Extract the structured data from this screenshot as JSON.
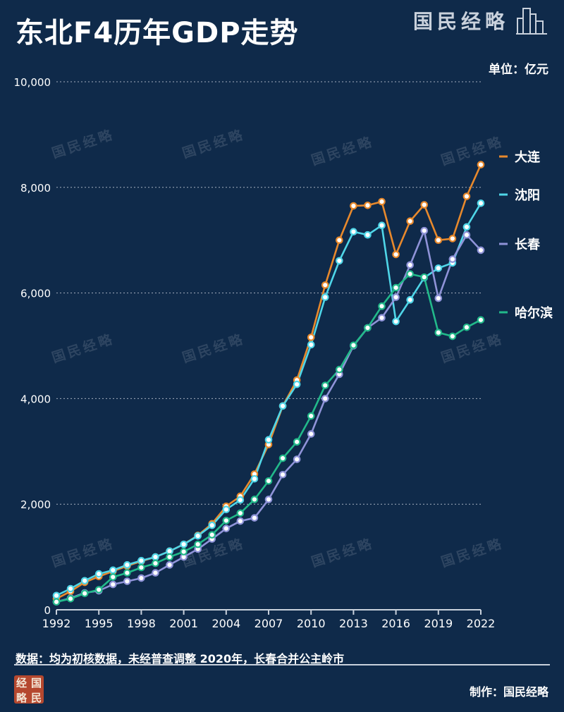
{
  "header": {
    "title": "东北F4历年GDP走势",
    "brand": "国民经略",
    "unit": "单位：亿元"
  },
  "footer": {
    "note": "数据：均为初核数据，未经普查调整   2020年，长春合并公主岭市",
    "credit": "制作：国民经略",
    "seal_chars": [
      "经",
      "国",
      "略",
      "民"
    ]
  },
  "watermark": "国民经略",
  "colors": {
    "background": "#0f2a4a",
    "grid": "#c9d1dc",
    "dalian": "#e8892c",
    "shenyang": "#4fd6e8",
    "changchun": "#8f93d8",
    "haerbin": "#22b98a"
  },
  "chart_data": {
    "type": "line",
    "title": "东北F4历年GDP走势",
    "xlabel": "",
    "ylabel": "",
    "unit": "亿元",
    "xlim": [
      1992,
      2022
    ],
    "ylim": [
      0,
      10000
    ],
    "x_ticks": [
      1992,
      1995,
      1998,
      2001,
      2004,
      2007,
      2010,
      2013,
      2016,
      2019,
      2022
    ],
    "y_ticks": [
      0,
      2000,
      4000,
      6000,
      8000,
      10000
    ],
    "y_tick_labels": [
      "0",
      "2,000",
      "4,000",
      "6,000",
      "8,000",
      "10,000"
    ],
    "grid": true,
    "legend_position": "right",
    "x": [
      1992,
      1993,
      1994,
      1995,
      1996,
      1997,
      1998,
      1999,
      2000,
      2001,
      2002,
      2003,
      2004,
      2005,
      2006,
      2007,
      2008,
      2009,
      2010,
      2011,
      2012,
      2013,
      2014,
      2015,
      2016,
      2017,
      2018,
      2019,
      2020,
      2021,
      2022
    ],
    "series": [
      {
        "name": "大连",
        "color": "#e8892c",
        "values": [
          210,
          350,
          520,
          630,
          730,
          830,
          920,
          1000,
          1110,
          1240,
          1410,
          1630,
          1960,
          2150,
          2570,
          3130,
          3860,
          4350,
          5160,
          6150,
          7000,
          7650,
          7660,
          7730,
          6730,
          7360,
          7670,
          7000,
          7030,
          7830,
          8430
        ]
      },
      {
        "name": "沈阳",
        "color": "#4fd6e8",
        "values": [
          270,
          400,
          550,
          680,
          750,
          850,
          930,
          1000,
          1110,
          1240,
          1400,
          1600,
          1900,
          2080,
          2480,
          3220,
          3860,
          4270,
          5020,
          5920,
          6610,
          7160,
          7100,
          7280,
          5460,
          5870,
          6290,
          6470,
          6570,
          7250,
          7700
        ]
      },
      {
        "name": "长春",
        "color": "#8f93d8",
        "values": [
          150,
          220,
          320,
          360,
          480,
          540,
          600,
          700,
          850,
          1000,
          1150,
          1340,
          1540,
          1680,
          1740,
          2090,
          2560,
          2850,
          3330,
          4000,
          4460,
          5000,
          5340,
          5530,
          5920,
          6530,
          7180,
          5900,
          6640,
          7100,
          6810
        ]
      },
      {
        "name": "哈尔滨",
        "color": "#22b98a",
        "values": [
          150,
          210,
          310,
          380,
          620,
          700,
          800,
          880,
          1000,
          1100,
          1240,
          1420,
          1690,
          1830,
          2090,
          2440,
          2870,
          3180,
          3670,
          4250,
          4550,
          5010,
          5340,
          5750,
          6100,
          6360,
          6300,
          5250,
          5180,
          5350,
          5490
        ]
      }
    ]
  }
}
